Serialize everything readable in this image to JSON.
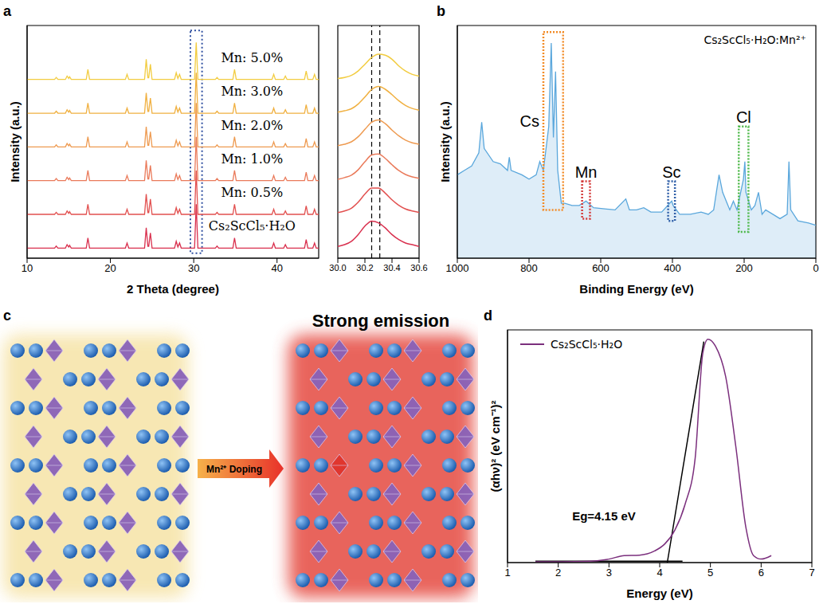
{
  "chart_data": [
    {
      "panel": "a",
      "type": "line",
      "x_label": "2 Theta (degree)",
      "y_label": "Intensity (a.u.)",
      "x": [
        10,
        13.3,
        13.5,
        13.7,
        14.6,
        14.8,
        15.0,
        15.1,
        15.3,
        17.1,
        17.3,
        17.5,
        21.8,
        22.0,
        22.2,
        24.1,
        24.3,
        24.5,
        24.6,
        24.8,
        25.0,
        27.7,
        27.9,
        28.1,
        28.3,
        28.5,
        30.1,
        30.3,
        30.5,
        32.6,
        32.8,
        33.0,
        34.7,
        34.9,
        35.1,
        39.4,
        39.6,
        39.8,
        40.8,
        41.0,
        41.2,
        43.3,
        43.5,
        43.7,
        44.3,
        44.5,
        44.7,
        45
      ],
      "series": [
        {
          "name": "Cs₂ScCl₅·H₂O",
          "color": "#d9304e",
          "values": [
            0,
            0,
            0.6,
            0,
            0,
            1,
            0.3,
            0.8,
            0,
            0,
            3,
            0,
            0,
            1.5,
            0,
            0,
            6,
            0.5,
            0.5,
            4.5,
            0,
            0,
            2,
            0.3,
            1.5,
            0,
            0,
            13,
            0,
            0,
            0.6,
            0,
            0,
            3,
            0,
            0,
            1.5,
            0,
            0,
            1,
            0,
            0,
            2.5,
            0,
            0,
            1.5,
            0,
            0
          ]
        },
        {
          "name": "Mn: 0.5%",
          "color": "#e2504f",
          "values": [
            10,
            10,
            10.6,
            10,
            10,
            11,
            10.3,
            10.8,
            10,
            10,
            13,
            10,
            10,
            11.5,
            10,
            10,
            16,
            10.5,
            10.5,
            14.5,
            10,
            10,
            12,
            10.3,
            11.5,
            10,
            10,
            23,
            10,
            10,
            10.6,
            10,
            10,
            13,
            10,
            10,
            11.5,
            10,
            10,
            11,
            10,
            10,
            12.5,
            10,
            10,
            11.5,
            10,
            10
          ]
        },
        {
          "name": "Mn: 1.0%",
          "color": "#ea7a5a",
          "values": [
            20,
            20,
            20.6,
            20,
            20,
            21,
            20.3,
            20.8,
            20,
            20,
            23,
            20,
            20,
            21.5,
            20,
            20,
            26,
            20.5,
            20.5,
            24.5,
            20,
            20,
            22,
            20.3,
            21.5,
            20,
            20,
            33,
            20,
            20,
            20.6,
            20,
            20,
            23,
            20,
            20,
            21.5,
            20,
            20,
            21,
            20,
            20,
            22.5,
            20,
            20,
            21.5,
            20,
            20
          ]
        },
        {
          "name": "Mn: 2.0%",
          "color": "#ee9a50",
          "values": [
            30,
            30,
            30.6,
            30,
            30,
            31,
            30.3,
            30.8,
            30,
            30,
            33,
            30,
            30,
            31.5,
            30,
            30,
            36,
            30.5,
            30.5,
            34.5,
            30,
            30,
            32,
            30.3,
            31.5,
            30,
            30,
            43,
            30,
            30,
            30.6,
            30,
            30,
            33,
            30,
            30,
            31.5,
            30,
            30,
            31,
            30,
            30,
            32.5,
            30,
            30,
            31.5,
            30,
            30
          ]
        },
        {
          "name": "Mn: 3.0%",
          "color": "#f0b040",
          "values": [
            40,
            40,
            40.6,
            40,
            40,
            41,
            40.3,
            40.8,
            40,
            40,
            43,
            40,
            40,
            41.5,
            40,
            40,
            46,
            40.5,
            40.5,
            44.5,
            40,
            40,
            42,
            40.3,
            41.5,
            40,
            40,
            52,
            40,
            40,
            40.6,
            40,
            40,
            43,
            40,
            40,
            41.5,
            40,
            40,
            41,
            40,
            40,
            42.5,
            40,
            40,
            41.5,
            40,
            40
          ]
        },
        {
          "name": "Mn: 5.0%",
          "color": "#f2cc40",
          "values": [
            50,
            50,
            50.6,
            50,
            50,
            51,
            50.3,
            50.8,
            50,
            50,
            53,
            50,
            50,
            51.5,
            50,
            50,
            56,
            50.5,
            50.5,
            54.5,
            50,
            50,
            52,
            50.3,
            51.5,
            50,
            50,
            61,
            50,
            50,
            50.6,
            50,
            50,
            53,
            50,
            50,
            51.5,
            50,
            50,
            51,
            50,
            50,
            52.5,
            50,
            50,
            51.5,
            50,
            50
          ]
        }
      ],
      "xlim": [
        10,
        45
      ],
      "xticks": [
        10,
        20,
        30,
        40
      ],
      "ylim": [
        -3,
        66
      ],
      "yticks": [],
      "tick_labels": "x",
      "highlight": {
        "x": [
          29.6,
          31.0
        ],
        "y": [
          -1.5,
          64.5
        ],
        "color": "#2f4fa0"
      }
    },
    {
      "panel": "a",
      "type": "line",
      "x": [
        30,
        30.05,
        30.1,
        30.15,
        30.2,
        30.25,
        30.3,
        30.35,
        30.4,
        30.45,
        30.5,
        30.55,
        30.6
      ],
      "series": [
        {
          "color": "#d9304e",
          "values": [
            0.5,
            1,
            2,
            4,
            6.5,
            8,
            7.5,
            6,
            4,
            2.5,
            1.5,
            1,
            0.5
          ]
        },
        {
          "color": "#e2504f",
          "values": [
            10.5,
            11,
            11.8,
            13.6,
            16,
            17.8,
            17.8,
            16.3,
            14.3,
            12.7,
            11.6,
            11,
            10.6
          ]
        },
        {
          "color": "#ea7a5a",
          "values": [
            20.4,
            20.9,
            21.6,
            23.2,
            25.6,
            27.6,
            27.9,
            26.6,
            24.7,
            23,
            21.8,
            21.1,
            20.7
          ]
        },
        {
          "color": "#ee9a50",
          "values": [
            30.4,
            30.8,
            31.5,
            33,
            35.2,
            37.3,
            38,
            36.9,
            35,
            33.3,
            32,
            31.2,
            30.8
          ]
        },
        {
          "color": "#f0b040",
          "values": [
            40.3,
            40.7,
            41.3,
            42.7,
            44.8,
            47,
            47.9,
            47.1,
            45.5,
            43.7,
            42.3,
            41.4,
            40.9
          ]
        },
        {
          "color": "#f2cc40",
          "values": [
            50.3,
            50.6,
            51.2,
            52.5,
            54.5,
            56.5,
            57.5,
            57.2,
            56,
            54,
            52.5,
            51.5,
            51
          ]
        }
      ],
      "xlim": [
        30,
        30.6
      ],
      "xticks": [
        {
          "value": 30,
          "label": "30.0"
        },
        30.2,
        30.4,
        30.6
      ],
      "ylim": [
        -3,
        66
      ],
      "yticks": [],
      "tick_labels": "x",
      "vlines": [
        30.25,
        30.31
      ]
    },
    {
      "panel": "b",
      "type": "area",
      "x_label": "Binding Energy (eV)",
      "y_label": "Intensity (a.u.)",
      "x": [
        1000,
        980,
        960,
        940,
        932,
        925,
        900,
        880,
        860,
        855,
        850,
        820,
        800,
        780,
        770,
        760,
        745,
        738,
        732,
        726,
        720,
        710,
        700,
        680,
        660,
        641,
        620,
        560,
        530,
        520,
        500,
        480,
        460,
        430,
        402,
        398,
        380,
        350,
        320,
        300,
        285,
        270,
        260,
        240,
        230,
        220,
        202,
        198,
        195,
        180,
        170,
        160,
        150,
        140,
        120,
        100,
        80,
        75,
        70,
        50,
        20,
        0
      ],
      "series": [
        {
          "name": "Cs₂ScCl₅·H₂O:Mn²⁺",
          "color": "#5aa7dc",
          "values": [
            38,
            40,
            42,
            48,
            62,
            50,
            44,
            43,
            40,
            46,
            40,
            38,
            36,
            38,
            44,
            40,
            60,
            98,
            55,
            85,
            40,
            25,
            25,
            24,
            24,
            26,
            23,
            22,
            27,
            22,
            22,
            23,
            21,
            21,
            26,
            24,
            20,
            20,
            21,
            20,
            22,
            38,
            30,
            22,
            26,
            22,
            36,
            44,
            30,
            22,
            24,
            30,
            20,
            22,
            20,
            18,
            20,
            44,
            22,
            17,
            16,
            15
          ]
        }
      ],
      "xlim": [
        1000,
        0
      ],
      "xticks": [
        1000,
        800,
        600,
        400,
        200,
        0
      ],
      "ylim": [
        0,
        106
      ],
      "yticks": [],
      "tick_labels": "x",
      "legend": "upper right",
      "annotations": [
        {
          "text": "Cs",
          "x": [
            705,
            760
          ],
          "y": [
            22,
            103
          ],
          "color": "#f28c28"
        },
        {
          "text": "Mn",
          "x": [
            630,
            652
          ],
          "y": [
            18,
            35
          ],
          "color": "#d43a3a"
        },
        {
          "text": "Sc",
          "x": [
            393,
            412
          ],
          "y": [
            17,
            35
          ],
          "color": "#2f5fa8"
        },
        {
          "text": "Cl",
          "x": [
            188,
            215
          ],
          "y": [
            12,
            60
          ],
          "color": "#4cb848"
        }
      ]
    },
    {
      "panel": "d",
      "type": "line",
      "x_label": "Energy (eV)",
      "y_label": "(αhν)² (eV cm⁻¹)²",
      "x": [
        1.55,
        2,
        2.5,
        3,
        3.3,
        3.6,
        3.9,
        4.1,
        4.3,
        4.5,
        4.7,
        4.85,
        4.95,
        5.1,
        5.3,
        5.5,
        5.7,
        5.85,
        6.0,
        6.2
      ],
      "series": [
        {
          "name": "Cs₂ScCl₅·H₂O",
          "color": "#7b2f7d",
          "values": [
            0.3,
            0.35,
            0.5,
            1.5,
            3,
            3.2,
            5,
            8,
            14,
            25,
            45,
            90,
            96,
            93,
            80,
            50,
            15,
            3,
            1.5,
            3
          ]
        }
      ],
      "xlim": [
        1,
        7
      ],
      "xticks": [
        1,
        2,
        3,
        4,
        5,
        6,
        7
      ],
      "ylim": [
        0,
        100
      ],
      "yticks": [],
      "tick_labels": "x",
      "legend": "upper left",
      "fit_lines": [
        {
          "x": [
            4.15,
            4.87
          ],
          "y": [
            0,
            95
          ]
        },
        {
          "x": [
            1.55,
            4.45
          ],
          "y": [
            0.6,
            0.6
          ]
        }
      ],
      "annotations": [
        {
          "text": "Eg=4.15 eV",
          "x": 2.9,
          "y": 20
        }
      ]
    }
  ],
  "diagram": {
    "panel": "c",
    "title": "Strong emission",
    "arrow_label": "Mn²⁺ Doping"
  }
}
